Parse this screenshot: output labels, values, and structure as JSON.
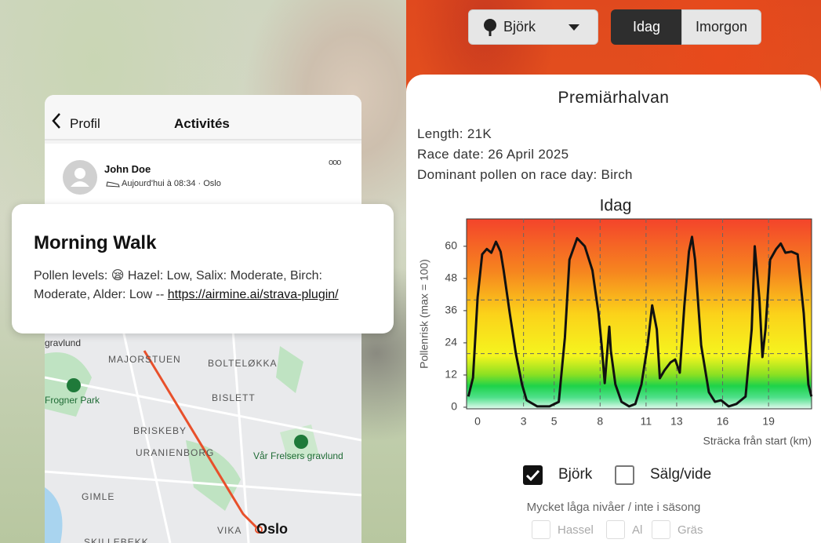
{
  "strava": {
    "nav": {
      "back": "Profil",
      "title": "Activités"
    },
    "activity": {
      "athlete": "John Doe",
      "meta": "Aujourd'hui à 08:34 · Oslo",
      "more": "ooo"
    },
    "post": {
      "title": "Morning Walk",
      "text": "Pollen levels: 😪 Hazel: Low, Salix: Moderate, Birch: Moderate, Alder: Low -- ",
      "link": "https://airmine.ai/strava-plugin/"
    },
    "map": {
      "labels": [
        "gravlund",
        "MAJORSTUEN",
        "BOLTELØKKA",
        "Frogner Park",
        "BISLETT",
        "BRISKEBY",
        "URANIENBORG",
        "Vår Frelsers gravlund",
        "GIMLE",
        "VIKA",
        "Oslo",
        "SKILLEBEKK"
      ]
    }
  },
  "app": {
    "pollen_select": "Björk",
    "tabs": [
      "Idag",
      "Imorgon"
    ],
    "race": {
      "name": "Premiärhalvan",
      "details": [
        "Length: 21K",
        "Race date: 26 April 2025",
        "Dominant pollen on race day: Birch"
      ]
    },
    "other_toggle": "Sälg/vide",
    "inactive_note": "Mycket låga nivåer / inte i säsong",
    "inactive": [
      "Hassel",
      "Al",
      "Gräs"
    ]
  },
  "chart_data": {
    "type": "line",
    "title": "Idag",
    "y_label": "Pollenrisk (max = 100)",
    "x_label": "Sträcka från start (km)",
    "x": [
      -0.6,
      -0.3,
      0,
      0.3,
      0.6,
      0.9,
      1.2,
      1.5,
      1.7,
      2.1,
      2.5,
      2.9,
      3.2,
      3.9,
      4.7,
      5.3,
      5.7,
      6,
      6.5,
      7,
      7.5,
      7.9,
      8.1,
      8.3,
      8.6,
      8.7,
      9,
      9.4,
      9.9,
      10.3,
      10.7,
      11.1,
      11.4,
      11.7,
      11.9,
      12.2,
      12.6,
      12.9,
      13.2,
      13.5,
      13.8,
      14,
      14.2,
      14.6,
      15.1,
      15.5,
      15.9,
      16.4,
      16.9,
      17.5,
      17.9,
      18.1,
      18.4,
      18.6,
      18.8,
      19.1,
      19.5,
      19.8,
      20.1,
      20.5,
      20.9,
      21.3,
      21.6,
      21.8
    ],
    "series": [
      {
        "name": "Björk",
        "color": "#111111",
        "values": [
          4,
          11,
          41,
          57,
          59,
          57.6,
          61.7,
          58,
          51,
          35,
          20,
          8.5,
          2.6,
          0.3,
          0.3,
          2,
          26,
          55,
          63,
          60,
          51,
          35,
          23,
          9,
          30,
          21,
          8.5,
          2,
          0.3,
          1.2,
          8.5,
          23,
          38,
          29,
          10.8,
          13.7,
          16.7,
          17.8,
          12.9,
          37.7,
          58,
          63.5,
          55,
          23,
          5.6,
          2,
          2.6,
          0.3,
          1.2,
          4,
          29,
          60,
          40.6,
          18.7,
          29,
          55,
          59,
          61,
          57.6,
          58,
          57,
          35,
          8.5,
          4
        ]
      }
    ],
    "xlim": [
      -0.72,
      21.81
    ],
    "ylim": [
      -0.6,
      70.2
    ],
    "xticks": [
      0,
      3,
      5,
      8,
      11,
      13,
      16,
      19
    ],
    "yticks": [
      0,
      12,
      24,
      36,
      48,
      60
    ],
    "threshold_lines": [
      20,
      40
    ]
  }
}
